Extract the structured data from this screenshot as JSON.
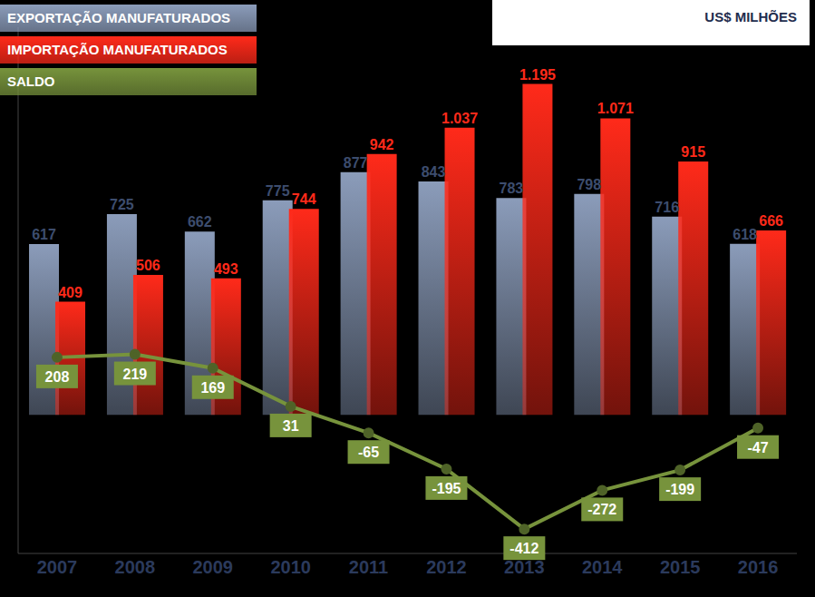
{
  "chart_data": {
    "type": "bar",
    "ylabel": "US$ MILHÕES",
    "categories": [
      "2007",
      "2008",
      "2009",
      "2010",
      "2011",
      "2012",
      "2013",
      "2014",
      "2015",
      "2016"
    ],
    "series": [
      {
        "name": "EXPORTAÇÃO MANUFATURADOS",
        "type": "bar",
        "color": "#8b9cba",
        "values": [
          617,
          725,
          662,
          775,
          877,
          843,
          783,
          798,
          716,
          618
        ]
      },
      {
        "name": "IMPORTAÇÃO MANUFATURADOS",
        "type": "bar",
        "color": "#ff2a1a",
        "values": [
          409,
          506,
          493,
          744,
          942,
          1037,
          1195,
          1071,
          915,
          666
        ],
        "value_labels": [
          "409",
          "506",
          "493",
          "744",
          "942",
          "1.037",
          "1.195",
          "1.071",
          "915",
          "666"
        ]
      },
      {
        "name": "SALDO",
        "type": "line",
        "color": "#77933c",
        "marker": "circle",
        "values": [
          208,
          219,
          169,
          31,
          -65,
          -195,
          -412,
          -272,
          -199,
          -47
        ]
      }
    ],
    "ylim": [
      -500,
      1400
    ],
    "data_labels": true,
    "tick_labels": "x",
    "legend": "top-left",
    "grid": false
  }
}
